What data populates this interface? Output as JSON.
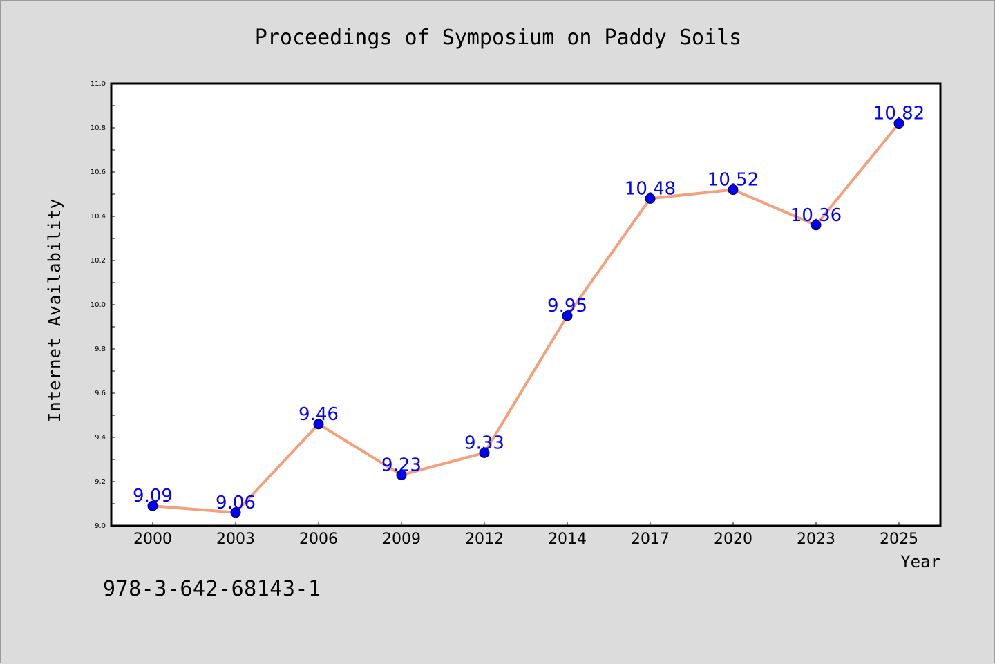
{
  "chart_data": {
    "type": "line",
    "title": "Proceedings of Symposium on Paddy Soils",
    "xlabel": "Year",
    "ylabel": "Internet Availability",
    "categories": [
      "2000",
      "2003",
      "2006",
      "2009",
      "2012",
      "2014",
      "2017",
      "2020",
      "2023",
      "2025"
    ],
    "series": [
      {
        "values": [
          9.09,
          9.06,
          9.46,
          9.23,
          9.33,
          9.95,
          10.48,
          10.52,
          10.36,
          10.82
        ],
        "labels": [
          "9.09",
          "9.06",
          "9.46",
          "9.23",
          "9.33",
          "9.95",
          "10.48",
          "10.52",
          "10.36",
          "10.82"
        ]
      }
    ],
    "ylim": [
      9.0,
      11.0
    ],
    "yticks": [
      "9.0",
      "9.2",
      "9.4",
      "9.6",
      "9.8",
      "10.0",
      "10.2",
      "10.4",
      "10.6",
      "10.8",
      "11.0"
    ],
    "grid": false,
    "line_color": "#f4a07a",
    "marker_color": "#0000ff",
    "label_color": "#0000ff",
    "plot_background": "#ffffff",
    "figure_background": "#dcdcdc"
  },
  "annotation": {
    "isbn": "978-3-642-68143-1"
  }
}
